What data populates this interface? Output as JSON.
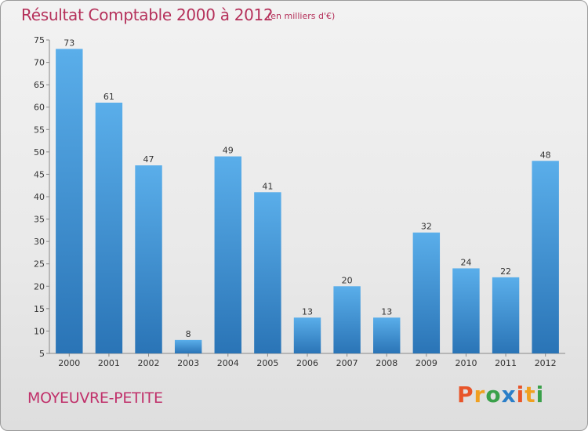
{
  "header": {
    "title": "Résultat Comptable 2000 à 2012",
    "unit": "(en milliers d'€)"
  },
  "footer": {
    "commune": "MOYEUVRE-PETITE",
    "logo": "Proxiti",
    "logo_colors": [
      "#e8552a",
      "#f0a020",
      "#3aa04a",
      "#2a7ec8",
      "#e8552a",
      "#f0a020",
      "#3aa04a"
    ]
  },
  "chart_data": {
    "type": "bar",
    "title": "Résultat Comptable 2000 à 2012",
    "xlabel": "",
    "ylabel": "",
    "categories": [
      "2000",
      "2001",
      "2002",
      "2003",
      "2004",
      "2005",
      "2006",
      "2007",
      "2008",
      "2009",
      "2010",
      "2011",
      "2012"
    ],
    "values": [
      73,
      61,
      47,
      8,
      49,
      41,
      13,
      20,
      13,
      32,
      24,
      22,
      48
    ],
    "ylim": [
      5,
      75
    ],
    "yticks": [
      5,
      10,
      15,
      20,
      25,
      30,
      35,
      40,
      45,
      50,
      55,
      60,
      65,
      70,
      75
    ],
    "grid": false,
    "bar_color_top": "#5aaeea",
    "bar_color_bottom": "#2a74b6"
  }
}
